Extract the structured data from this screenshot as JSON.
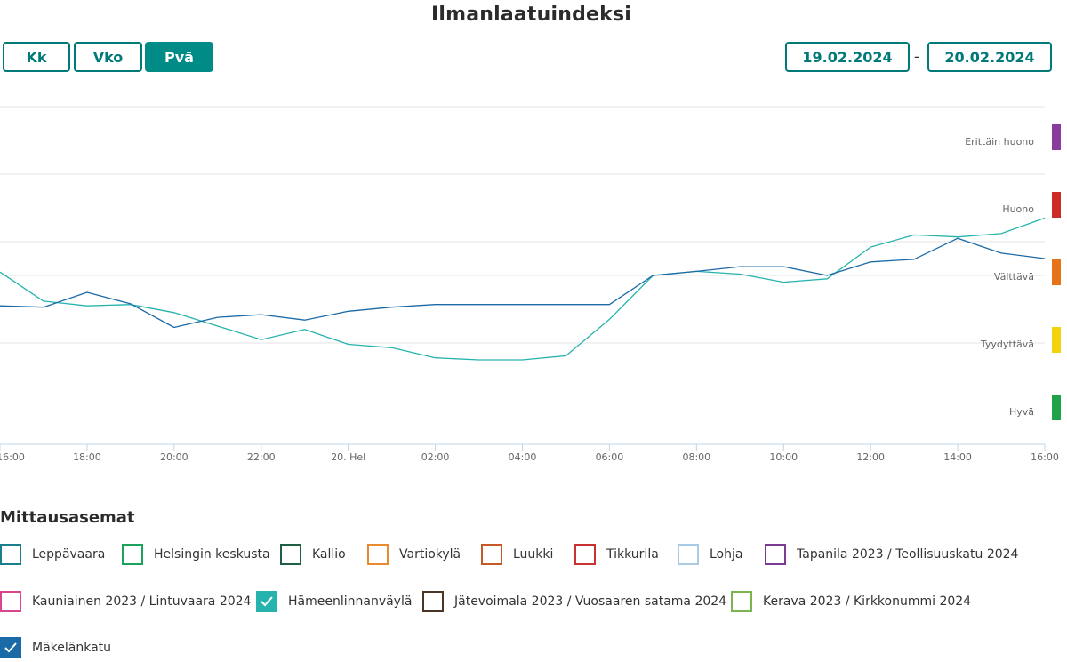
{
  "title": "Ilmanlaatuindeksi",
  "range_buttons": [
    {
      "label": "Kk",
      "active": false
    },
    {
      "label": "Vko",
      "active": false
    },
    {
      "label": "Pvä",
      "active": true
    }
  ],
  "date_from": "19.02.2024",
  "date_separator": "-",
  "date_to": "20.02.2024",
  "colors": {
    "accent": "#008b87",
    "series_hameenlinnanvayla": "#27b3ad",
    "series_makelankatu": "#1a6aa7",
    "grid": "#e3e3e3",
    "axis": "#bcd6ea"
  },
  "chart_data": {
    "type": "line",
    "x_tick_labels": [
      "16:00",
      "18:00",
      "20:00",
      "22:00",
      "20. Hel",
      "02:00",
      "04:00",
      "06:00",
      "08:00",
      "10:00",
      "12:00",
      "14:00",
      "16:00"
    ],
    "x_hours": [
      0,
      1,
      2,
      3,
      4,
      5,
      6,
      7,
      8,
      9,
      10,
      11,
      12,
      13,
      14,
      15,
      16,
      17,
      18,
      19,
      20,
      21,
      22,
      23,
      24
    ],
    "ylim": [
      0.5,
      5.5
    ],
    "y_levels": [
      {
        "label": "Hyvä",
        "value": 1,
        "color": "#1fa24a"
      },
      {
        "label": "Tyydyttävä",
        "value": 2,
        "color": "#f3d20b"
      },
      {
        "label": "Välttävä",
        "value": 3,
        "color": "#e6731b"
      },
      {
        "label": "Huono",
        "value": 4,
        "color": "#cc2b26"
      },
      {
        "label": "Erittäin huono",
        "value": 5,
        "color": "#8a3b9e"
      }
    ],
    "grid": true,
    "series": [
      {
        "name": "Hämeenlinnanväylä",
        "color": "#27b3ad",
        "values": [
          3.05,
          2.62,
          2.55,
          2.57,
          2.45,
          2.25,
          2.05,
          2.2,
          1.98,
          1.93,
          1.78,
          1.75,
          1.75,
          1.81,
          2.35,
          3.0,
          3.06,
          3.02,
          2.9,
          2.95,
          3.42,
          3.6,
          3.57,
          3.62,
          3.85
        ]
      },
      {
        "name": "Mäkelänkatu",
        "color": "#1a6aa7",
        "values": [
          2.55,
          2.53,
          2.75,
          2.58,
          2.23,
          2.38,
          2.42,
          2.34,
          2.47,
          2.53,
          2.57,
          2.57,
          2.57,
          2.57,
          2.57,
          3.0,
          3.06,
          3.13,
          3.13,
          3.0,
          3.2,
          3.24,
          3.55,
          3.33,
          3.25
        ]
      }
    ]
  },
  "legend": {
    "title": "Mittausasemat",
    "items": [
      {
        "label": "Leppävaara",
        "color": "#1a7f8c",
        "checked": false
      },
      {
        "label": "Helsingin keskusta",
        "color": "#1aa35a",
        "checked": false
      },
      {
        "label": "Kallio",
        "color": "#1f5f43",
        "checked": false
      },
      {
        "label": "Vartiokylä",
        "color": "#e88a2d",
        "checked": false
      },
      {
        "label": "Luukki",
        "color": "#c65a26",
        "checked": false
      },
      {
        "label": "Tikkurila",
        "color": "#c93232",
        "checked": false
      },
      {
        "label": "Lohja",
        "color": "#a9cbe6",
        "checked": false
      },
      {
        "label": "Tapanila 2023 / Teollisuuskatu 2024",
        "color": "#7b3b93",
        "checked": false
      },
      {
        "label": "Kauniainen 2023 / Lintuvaara 2024",
        "color": "#d9468f",
        "checked": false
      },
      {
        "label": "Hämeenlinnanväylä",
        "color": "#27b3ad",
        "checked": true
      },
      {
        "label": "Jätevoimala 2023 / Vuosaaren satama 2024",
        "color": "#4a3629",
        "checked": false
      },
      {
        "label": "Kerava 2023 / Kirkkonummi 2024",
        "color": "#7bb451",
        "checked": false
      },
      {
        "label": "Mäkelänkatu",
        "color": "#1a6aa7",
        "checked": true
      }
    ]
  }
}
